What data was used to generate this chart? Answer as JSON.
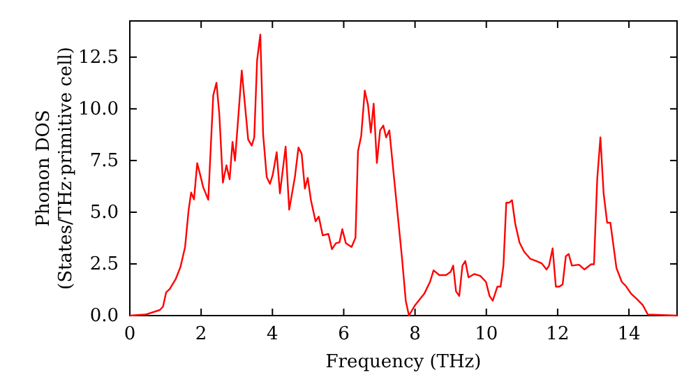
{
  "chart_data": {
    "type": "line",
    "xlabel": "Frequency (THz)",
    "ylabel": "Phonon DOS\n(States/THz·primitive cell)",
    "xlim": [
      0,
      15.35
    ],
    "ylim": [
      0,
      14.25
    ],
    "xticks": [
      0,
      2,
      4,
      6,
      8,
      10,
      12,
      14
    ],
    "yticks": [
      {
        "value": 0,
        "label": "0.0"
      },
      {
        "value": 2.5,
        "label": "2.5"
      },
      {
        "value": 5,
        "label": "5.0"
      },
      {
        "value": 7.5,
        "label": "7.5"
      },
      {
        "value": 10,
        "label": "10.0"
      },
      {
        "value": 12.5,
        "label": "12.5"
      }
    ],
    "grid": false,
    "marker": "none",
    "line_style": "solid",
    "series": [
      {
        "color": "#ff0000",
        "x": [
          0,
          0.44,
          0.84,
          0.93,
          1.02,
          1.12,
          1.29,
          1.42,
          1.55,
          1.65,
          1.72,
          1.8,
          1.89,
          1.96,
          2.06,
          2.2,
          2.34,
          2.43,
          2.51,
          2.61,
          2.71,
          2.8,
          2.88,
          2.95,
          3.14,
          3.32,
          3.42,
          3.49,
          3.57,
          3.66,
          3.74,
          3.84,
          3.93,
          4.01,
          4.12,
          4.21,
          4.37,
          4.47,
          4.63,
          4.73,
          4.82,
          4.91,
          4.99,
          5.08,
          5.21,
          5.3,
          5.41,
          5.57,
          5.67,
          5.78,
          5.88,
          5.96,
          6.06,
          6.22,
          6.33,
          6.4,
          6.49,
          6.59,
          6.68,
          6.76,
          6.84,
          6.93,
          7.02,
          7.11,
          7.19,
          7.28,
          7.37,
          7.5,
          7.63,
          7.74,
          7.83,
          8.0,
          8.26,
          8.42,
          8.52,
          8.68,
          8.87,
          9.0,
          9.07,
          9.15,
          9.24,
          9.33,
          9.41,
          9.5,
          9.66,
          9.83,
          9.99,
          10.09,
          10.18,
          10.31,
          10.4,
          10.48,
          10.56,
          10.64,
          10.72,
          10.81,
          10.93,
          11.06,
          11.23,
          11.4,
          11.55,
          11.69,
          11.76,
          11.86,
          11.95,
          12.05,
          12.14,
          12.23,
          12.31,
          12.4,
          12.6,
          12.75,
          12.94,
          13.02,
          13.11,
          13.2,
          13.29,
          13.39,
          13.48,
          13.65,
          13.8,
          13.91,
          14.06,
          14.23,
          14.39,
          14.53,
          15.35
        ],
        "values": [
          0,
          0.05,
          0.27,
          0.43,
          1.13,
          1.29,
          1.78,
          2.35,
          3.32,
          5.12,
          5.95,
          5.62,
          7.37,
          6.9,
          6.2,
          5.6,
          10.65,
          11.26,
          9.75,
          6.43,
          7.27,
          6.59,
          8.4,
          7.49,
          11.85,
          8.51,
          8.22,
          8.62,
          12.35,
          13.59,
          8.74,
          6.7,
          6.37,
          6.82,
          7.9,
          5.91,
          8.17,
          5.12,
          6.7,
          8.13,
          7.83,
          6.14,
          6.66,
          5.58,
          4.56,
          4.79,
          3.88,
          3.95,
          3.21,
          3.5,
          3.54,
          4.18,
          3.5,
          3.32,
          3.77,
          7.95,
          8.69,
          10.88,
          10.2,
          8.85,
          10.25,
          7.38,
          8.96,
          9.19,
          8.62,
          8.96,
          7.38,
          5.12,
          2.87,
          0.72,
          0,
          0.5,
          1.06,
          1.63,
          2.19,
          1.96,
          1.96,
          2.12,
          2.42,
          1.17,
          0.95,
          2.42,
          2.64,
          1.85,
          2.01,
          1.92,
          1.63,
          0.95,
          0.72,
          1.4,
          1.4,
          2.42,
          5.46,
          5.46,
          5.58,
          4.45,
          3.54,
          3.09,
          2.75,
          2.64,
          2.53,
          2.23,
          2.42,
          3.25,
          1.4,
          1.4,
          1.51,
          2.87,
          2.98,
          2.42,
          2.46,
          2.23,
          2.48,
          2.48,
          6.59,
          8.62,
          5.91,
          4.49,
          4.49,
          2.3,
          1.63,
          1.44,
          1.06,
          0.79,
          0.5,
          0.05,
          0
        ]
      }
    ]
  }
}
